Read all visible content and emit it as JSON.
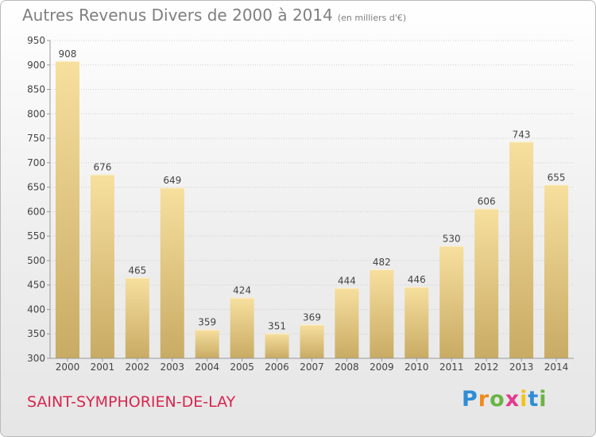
{
  "title": "Autres Revenus Divers de 2000 à 2014",
  "unit_note": "(en milliers d'€)",
  "commune": "SAINT-SYMPHORIEN-DE-LAY",
  "brand": {
    "p": "P",
    "r": "r",
    "o": "o",
    "x": "x",
    "i1": "i",
    "t": "t",
    "i2": "i"
  },
  "colors": {
    "bar_light": "#f7df9e",
    "bar_dark": "#c8ab64",
    "grid": "#cfcfcf",
    "text": "#444444",
    "title": "#7f7f7f",
    "commune": "#d6264f"
  },
  "chart_data": {
    "type": "bar",
    "categories": [
      "2000",
      "2001",
      "2002",
      "2003",
      "2004",
      "2005",
      "2006",
      "2007",
      "2008",
      "2009",
      "2010",
      "2011",
      "2012",
      "2013",
      "2014"
    ],
    "values": [
      908,
      676,
      465,
      649,
      359,
      424,
      351,
      369,
      444,
      482,
      446,
      530,
      606,
      743,
      655
    ],
    "ylim": [
      300,
      950
    ],
    "yticks": [
      300,
      350,
      400,
      450,
      500,
      550,
      600,
      650,
      700,
      750,
      800,
      850,
      900,
      950
    ],
    "grid": true,
    "data_labels": true
  }
}
